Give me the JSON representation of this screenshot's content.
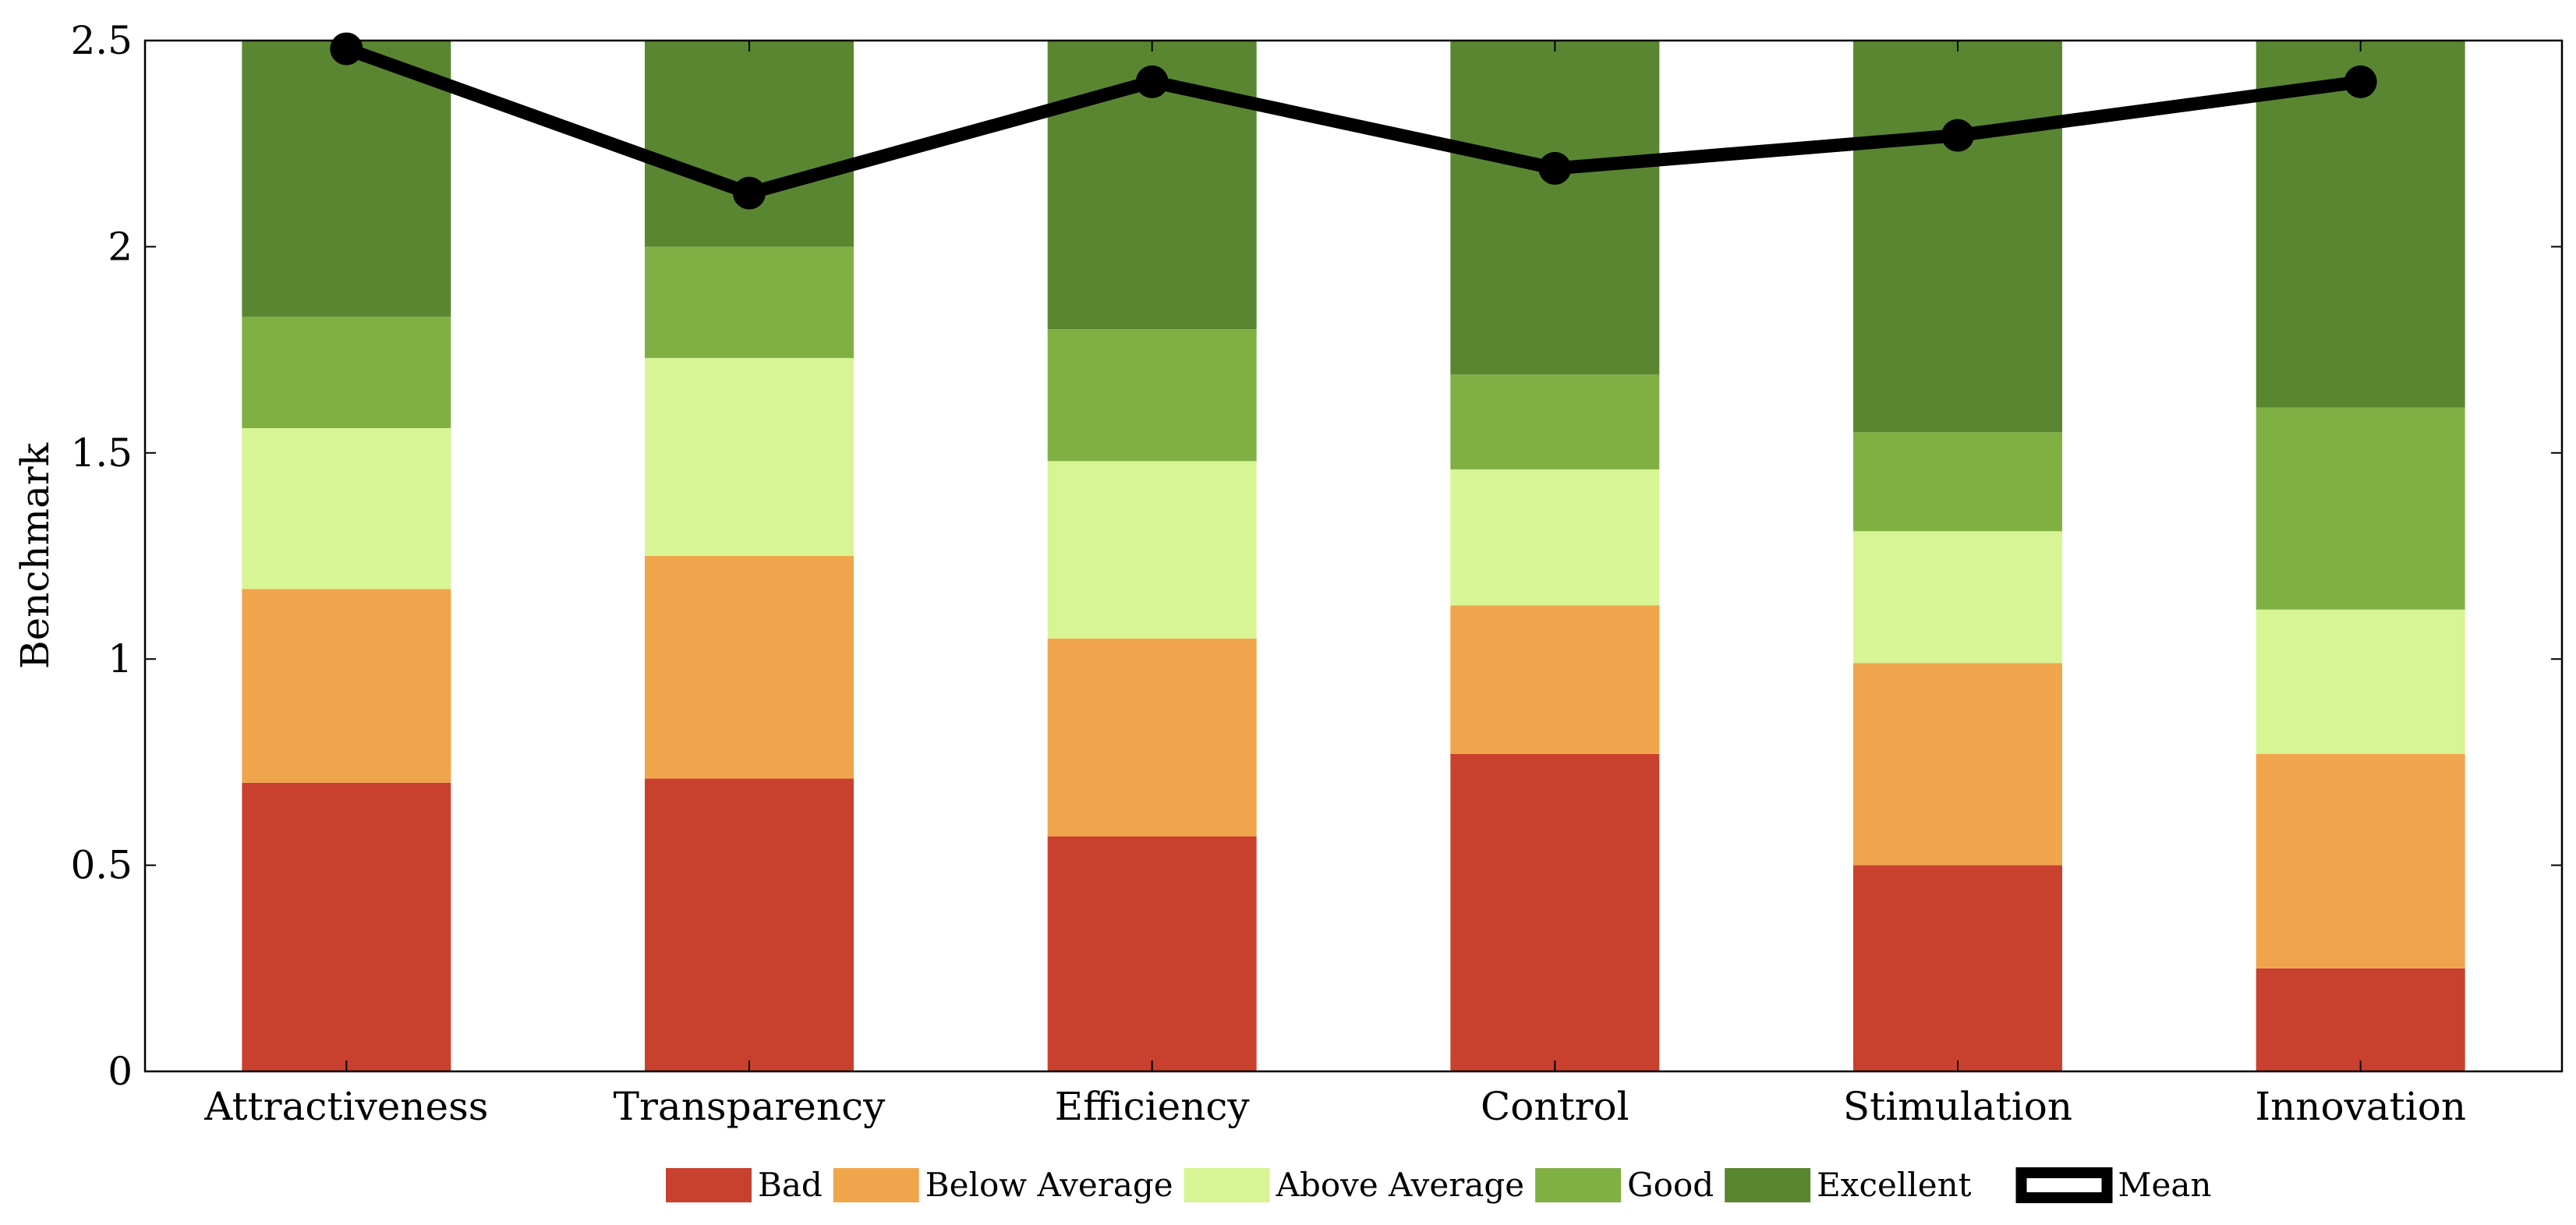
{
  "chart_data": {
    "type": "bar",
    "stacked": true,
    "categories": [
      "Attractiveness",
      "Transparency",
      "Efficiency",
      "Control",
      "Stimulation",
      "Innovation"
    ],
    "series": [
      {
        "name": "Bad",
        "color": "#c9412e",
        "values": [
          0.7,
          0.71,
          0.57,
          0.77,
          0.5,
          0.25
        ]
      },
      {
        "name": "Below Average",
        "color": "#f0a54d",
        "values": [
          0.47,
          0.54,
          0.48,
          0.36,
          0.49,
          0.52
        ]
      },
      {
        "name": "Above Average",
        "color": "#d7f594",
        "values": [
          0.39,
          0.48,
          0.43,
          0.33,
          0.32,
          0.35
        ]
      },
      {
        "name": "Good",
        "color": "#80b044",
        "values": [
          0.27,
          0.27,
          0.32,
          0.23,
          0.24,
          0.49
        ]
      },
      {
        "name": "Excellent",
        "color": "#5a8632",
        "values": [
          0.67,
          0.5,
          0.7,
          0.81,
          0.95,
          0.89
        ]
      }
    ],
    "line_series": {
      "name": "Mean",
      "color": "#000000",
      "values": [
        2.48,
        2.13,
        2.4,
        2.19,
        2.27,
        2.4
      ]
    },
    "ylabel": "Benchmark",
    "xlabel": "",
    "ylim": [
      0,
      2.5
    ],
    "yticks": [
      0,
      0.5,
      1,
      1.5,
      2,
      2.5
    ],
    "ytick_labels": [
      "0",
      "0.5",
      "1",
      "1.5",
      "2",
      "2.5"
    ],
    "grid": false,
    "legend_position": "bottom"
  }
}
